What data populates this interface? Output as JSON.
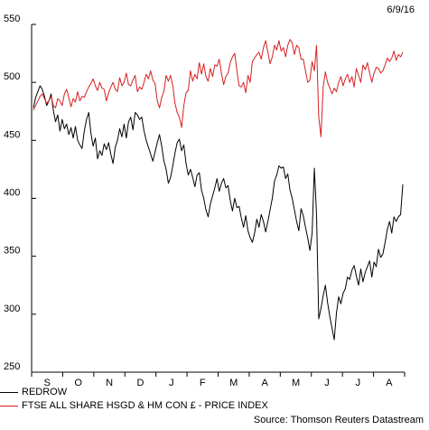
{
  "date": "6/9/16",
  "source": "Source: Thomson Reuters Datastream",
  "chart_data": {
    "type": "line",
    "ylim": [
      250,
      550
    ],
    "yticks": [
      250,
      300,
      350,
      400,
      450,
      500,
      550
    ],
    "month_labels": [
      "S",
      "O",
      "N",
      "D",
      "J",
      "F",
      "M",
      "A",
      "M",
      "J",
      "J",
      "A"
    ],
    "grid": false,
    "legend_placement": "bottom-left",
    "series": [
      {
        "name": "REDROW",
        "color": "#000000",
        "values": [
          478,
          487,
          492,
          497,
          494,
          488,
          480,
          484,
          490,
          476,
          466,
          472,
          458,
          468,
          460,
          464,
          455,
          461,
          452,
          462,
          450,
          446,
          443,
          458,
          468,
          474,
          456,
          445,
          452,
          434,
          441,
          437,
          447,
          442,
          448,
          438,
          430,
          444,
          450,
          460,
          453,
          464,
          452,
          466,
          470,
          459,
          474,
          472,
          468,
          470,
          458,
          450,
          444,
          438,
          432,
          440,
          448,
          455,
          445,
          432,
          425,
          413,
          418,
          428,
          439,
          448,
          451,
          441,
          446,
          430,
          420,
          425,
          418,
          410,
          420,
          422,
          407,
          400,
          390,
          384,
          395,
          402,
          409,
          417,
          406,
          413,
          417,
          409,
          411,
          398,
          389,
          400,
          392,
          393,
          383,
          375,
          385,
          372,
          366,
          362,
          370,
          382,
          375,
          386,
          380,
          371,
          380,
          390,
          400,
          415,
          420,
          428,
          426,
          427,
          417,
          421,
          407,
          400,
          390,
          380,
          372,
          391,
          385,
          375,
          366,
          355,
          370,
          426,
          386,
          296,
          305,
          316,
          325,
          310,
          298,
          288,
          278,
          301,
          315,
          309,
          318,
          322,
          332,
          330,
          338,
          342,
          333,
          325,
          339,
          328,
          336,
          341,
          346,
          332,
          345,
          341,
          356,
          349,
          352,
          362,
          373,
          380,
          370,
          384,
          380,
          384,
          386,
          412
        ]
      },
      {
        "name": "FTSE ALL SHARE HSGD & HM CON £ - PRICE INDEX",
        "color": "#d62020",
        "values": [
          476,
          480,
          484,
          488,
          490,
          486,
          482,
          484,
          488,
          480,
          478,
          486,
          484,
          480,
          490,
          494,
          487,
          479,
          486,
          483,
          492,
          484,
          488,
          487,
          492,
          496,
          499,
          503,
          497,
          493,
          500,
          495,
          494,
          484,
          491,
          496,
          500,
          494,
          492,
          504,
          497,
          500,
          508,
          498,
          497,
          502,
          506,
          492,
          496,
          494,
          500,
          507,
          503,
          510,
          502,
          499,
          484,
          478,
          487,
          492,
          506,
          501,
          506,
          497,
          482,
          474,
          470,
          461,
          480,
          491,
          493,
          510,
          501,
          507,
          503,
          517,
          507,
          516,
          505,
          501,
          512,
          505,
          515,
          514,
          520,
          508,
          498,
          505,
          508,
          517,
          522,
          525,
          510,
          497,
          496,
          500,
          491,
          506,
          500,
          518,
          521,
          524,
          526,
          520,
          530,
          536,
          526,
          516,
          522,
          532,
          528,
          536,
          527,
          530,
          522,
          532,
          537,
          534,
          524,
          532,
          530,
          520,
          520,
          510,
          500,
          502,
          518,
          510,
          532,
          470,
          453,
          496,
          509,
          500,
          495,
          490,
          495,
          492,
          500,
          505,
          497,
          503,
          507,
          500,
          505,
          496,
          512,
          506,
          500,
          515,
          511,
          517,
          508,
          500,
          508,
          513,
          512,
          508,
          510,
          515,
          521,
          518,
          521,
          527,
          519,
          524,
          522,
          526
        ]
      }
    ]
  }
}
